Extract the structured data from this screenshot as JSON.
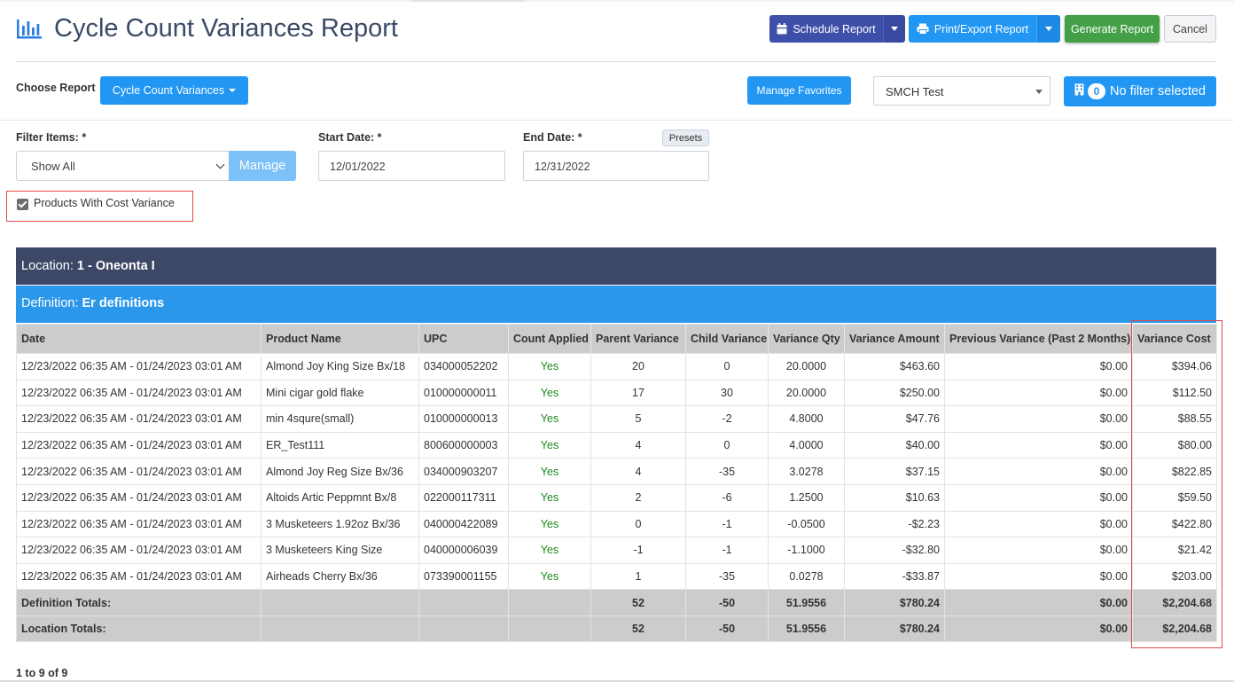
{
  "header": {
    "title": "Cycle Count Variances Report",
    "schedule_label": "Schedule Report",
    "print_label": "Print/Export Report",
    "generate_label": "Generate Report",
    "cancel_label": "Cancel"
  },
  "report_select": {
    "choose_label": "Choose Report",
    "selected": "Cycle Count Variances",
    "favorites_label": "Manage Favorites",
    "store_value": "SMCH Test",
    "filter_count": "0",
    "filter_label": "No filter selected"
  },
  "filters": {
    "items_label": "Filter Items: *",
    "items_value": "Show All",
    "manage_label": "Manage",
    "start_label": "Start Date: *",
    "start_value": "12/01/2022",
    "end_label": "End Date: *",
    "end_value": "12/31/2022",
    "presets_label": "Presets",
    "cost_variance_label": "Products With Cost Variance"
  },
  "location": {
    "prefix": "Location:",
    "name": "1 - Oneonta I"
  },
  "definition": {
    "prefix": "Definition:",
    "name": "Er definitions"
  },
  "table": {
    "columns": [
      "Date",
      "Product Name",
      "UPC",
      "Count Applied",
      "Parent Variance",
      "Child Variance",
      "Variance Qty",
      "Variance Amount",
      "Previous Variance (Past 2 Months)",
      "Variance Cost"
    ],
    "rows": [
      [
        "12/23/2022 06:35 AM - 01/24/2023 03:01 AM",
        "Almond Joy King Size Bx/18",
        "034000052202",
        "Yes",
        "20",
        "0",
        "20.0000",
        "$463.60",
        "$0.00",
        "$394.06"
      ],
      [
        "12/23/2022 06:35 AM - 01/24/2023 03:01 AM",
        "Mini cigar gold flake",
        "010000000011",
        "Yes",
        "17",
        "30",
        "20.0000",
        "$250.00",
        "$0.00",
        "$112.50"
      ],
      [
        "12/23/2022 06:35 AM - 01/24/2023 03:01 AM",
        "min 4squre(small)",
        "010000000013",
        "Yes",
        "5",
        "-2",
        "4.8000",
        "$47.76",
        "$0.00",
        "$88.55"
      ],
      [
        "12/23/2022 06:35 AM - 01/24/2023 03:01 AM",
        "ER_Test111",
        "800600000003",
        "Yes",
        "4",
        "0",
        "4.0000",
        "$40.00",
        "$0.00",
        "$80.00"
      ],
      [
        "12/23/2022 06:35 AM - 01/24/2023 03:01 AM",
        "Almond Joy Reg Size Bx/36",
        "034000903207",
        "Yes",
        "4",
        "-35",
        "3.0278",
        "$37.15",
        "$0.00",
        "$822.85"
      ],
      [
        "12/23/2022 06:35 AM - 01/24/2023 03:01 AM",
        "Altoids Artic Peppmnt Bx/8",
        "022000117311",
        "Yes",
        "2",
        "-6",
        "1.2500",
        "$10.63",
        "$0.00",
        "$59.50"
      ],
      [
        "12/23/2022 06:35 AM - 01/24/2023 03:01 AM",
        "3 Musketeers 1.92oz Bx/36",
        "040000422089",
        "Yes",
        "0",
        "-1",
        "-0.0500",
        "-$2.23",
        "$0.00",
        "$422.80"
      ],
      [
        "12/23/2022 06:35 AM - 01/24/2023 03:01 AM",
        "3 Musketeers King Size",
        "040000006039",
        "Yes",
        "-1",
        "-1",
        "-1.1000",
        "-$32.80",
        "$0.00",
        "$21.42"
      ],
      [
        "12/23/2022 06:35 AM - 01/24/2023 03:01 AM",
        "Airheads Cherry Bx/36",
        "073390001155",
        "Yes",
        "1",
        "-35",
        "0.0278",
        "-$33.87",
        "$0.00",
        "$203.00"
      ]
    ],
    "totals": [
      [
        "Definition Totals:",
        "",
        "",
        "",
        "52",
        "-50",
        "51.9556",
        "$780.24",
        "$0.00",
        "$2,204.68"
      ],
      [
        "Location Totals:",
        "",
        "",
        "",
        "52",
        "-50",
        "51.9556",
        "$780.24",
        "$0.00",
        "$2,204.68"
      ]
    ]
  },
  "pager": {
    "text": "1 to 9 of 9"
  },
  "colors": {
    "header_blue": "#3c4866",
    "definition_blue": "#2a97ea",
    "schedule_button": "#3d4fa8",
    "primary_button": "#2196f3",
    "generate_button": "#43a047",
    "highlight_red": "#e04848",
    "yes_green": "#1a8a1a"
  }
}
